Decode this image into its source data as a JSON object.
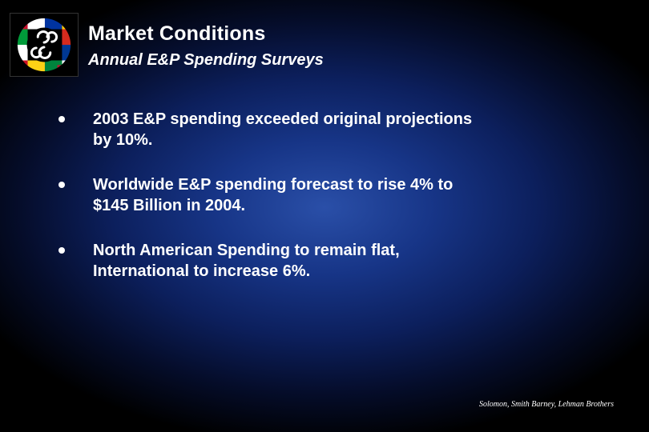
{
  "slide": {
    "title": "Market Conditions",
    "subtitle": "Annual E&P Spending Surveys",
    "logo_icon": "globe-flags-logo-icon",
    "bullets": [
      {
        "line1": "2003 E&P spending exceeded original projections",
        "line2": "by 10%."
      },
      {
        "line1": "Worldwide E&P spending forecast to rise 4% to",
        "line2": "$145 Billion in 2004."
      },
      {
        "line1": "North American Spending to remain flat,",
        "line2": "International to increase 6%."
      }
    ],
    "source": "Solomon, Smith Barney, Lehman Brothers"
  },
  "colors": {
    "background_center": "#2a4fa8",
    "background_edge": "#000000",
    "text": "#ffffff"
  }
}
